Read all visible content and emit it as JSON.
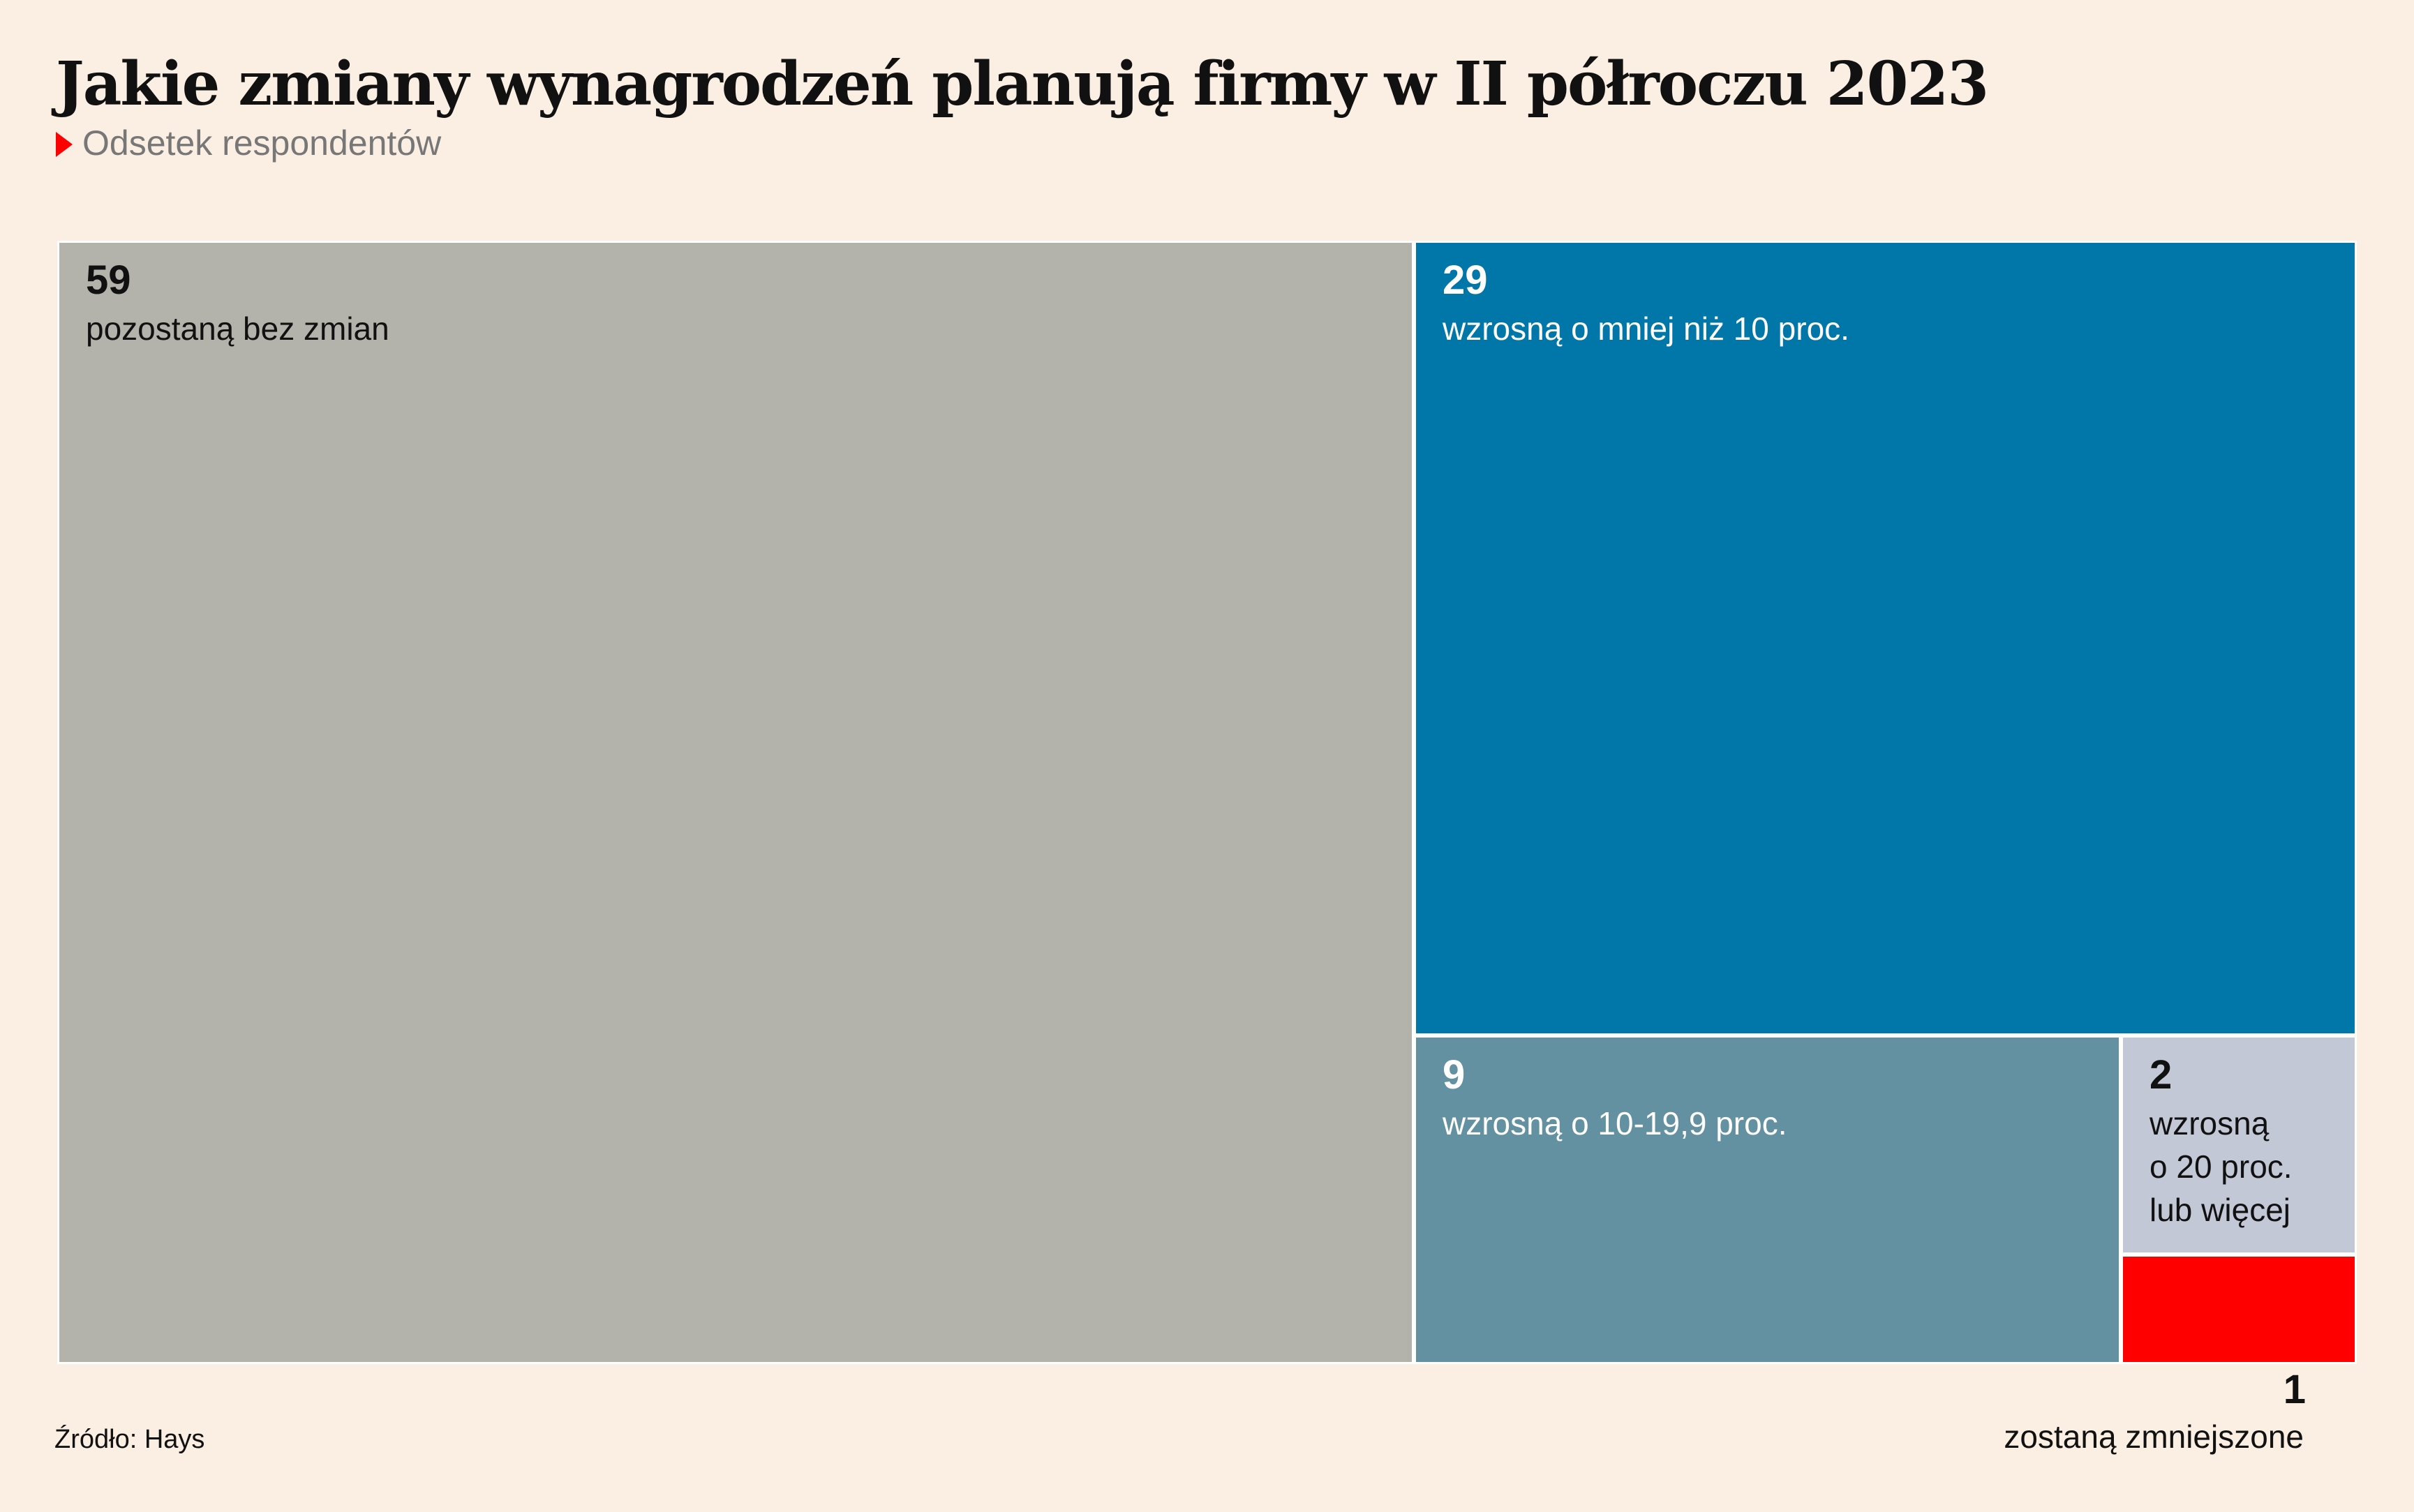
{
  "title": "Jakie zmiany wynagrodzeń planują firmy w II półroczu 2023",
  "subtitle": "Odsetek respondentów",
  "source": "Źródło: Hays",
  "chart_data": {
    "type": "treemap",
    "unit": "%",
    "items": [
      {
        "value": 59,
        "label": "pozostaną bez zmian",
        "color": "#B3B3AB",
        "text_color": "#111111"
      },
      {
        "value": 29,
        "label": "wzrosną o mniej niż 10 proc.",
        "color": "#0077A8",
        "text_color": "#FFFFFF"
      },
      {
        "value": 9,
        "label": "wzrosną o 10-19,9 proc.",
        "color": "#6391A1",
        "text_color": "#FFFFFF"
      },
      {
        "value": 2,
        "label": "wzrosną\no 20 proc.\nlub więcej",
        "color": "#C3C8D7",
        "text_color": "#111111"
      },
      {
        "value": 1,
        "label": "zostaną zmniejszone",
        "color": "#FF0000",
        "text_color": "#111111"
      }
    ]
  }
}
